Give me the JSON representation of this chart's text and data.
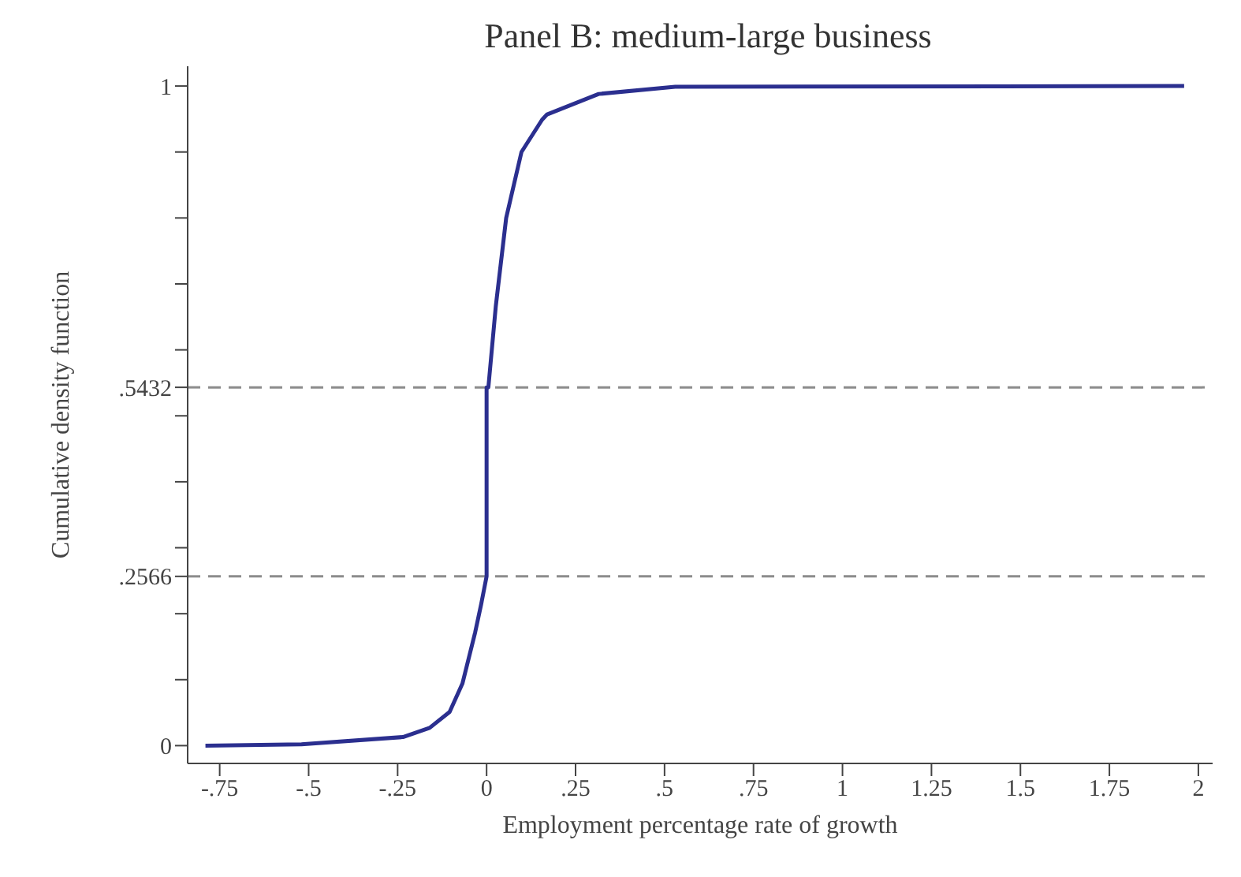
{
  "chart_data": {
    "type": "line",
    "title": "Panel B: medium-large business",
    "xlabel": "Employment percentage rate of growth",
    "ylabel": "Cumulative density function",
    "x": [
      -0.79,
      -0.52,
      -0.235,
      -0.16,
      -0.104,
      -0.068,
      -0.032,
      -0.015,
      0,
      0,
      0.005,
      0.026,
      0.055,
      0.098,
      0.156,
      0.17,
      0.315,
      0.53,
      1.96
    ],
    "series": [
      {
        "color": "#2b2f8f",
        "values": [
          0,
          0.002,
          0.013,
          0.027,
          0.051,
          0.094,
          0.172,
          0.215,
          0.2566,
          0.5432,
          0.5432,
          0.667,
          0.8,
          0.9,
          0.949,
          0.957,
          0.988,
          0.999,
          1
        ]
      }
    ],
    "xlim": [
      -0.84,
      2.04
    ],
    "ylim": [
      -0.027,
      1.03
    ],
    "xticks": [
      {
        "value": -0.75,
        "label": "-.75"
      },
      {
        "value": -0.5,
        "label": "-.5"
      },
      {
        "value": -0.25,
        "label": "-.25"
      },
      0,
      {
        "value": 0.25,
        "label": ".25"
      },
      {
        "value": 0.5,
        "label": ".5"
      },
      {
        "value": 0.75,
        "label": ".75"
      },
      1,
      1.25,
      1.5,
      1.75,
      2
    ],
    "yticks": [
      0,
      {
        "value": 0.1,
        "label": null
      },
      {
        "value": 0.2,
        "label": null
      },
      {
        "value": 0.2566,
        "label": ".2566"
      },
      {
        "value": 0.3,
        "label": null
      },
      {
        "value": 0.4,
        "label": null
      },
      {
        "value": 0.5,
        "label": null
      },
      {
        "value": 0.5432,
        "label": ".5432"
      },
      {
        "value": 0.6,
        "label": null
      },
      {
        "value": 0.7,
        "label": null
      },
      {
        "value": 0.8,
        "label": null
      },
      {
        "value": 0.9,
        "label": null
      },
      1
    ],
    "ref_lines": [
      {
        "axis": "y",
        "value": 0.2566,
        "color": "#8c8c8c",
        "line_style": "dashed"
      },
      {
        "axis": "y",
        "value": 0.5432,
        "color": "#8c8c8c",
        "line_style": "dashed"
      }
    ],
    "marker": "none",
    "line_style": "solid"
  }
}
